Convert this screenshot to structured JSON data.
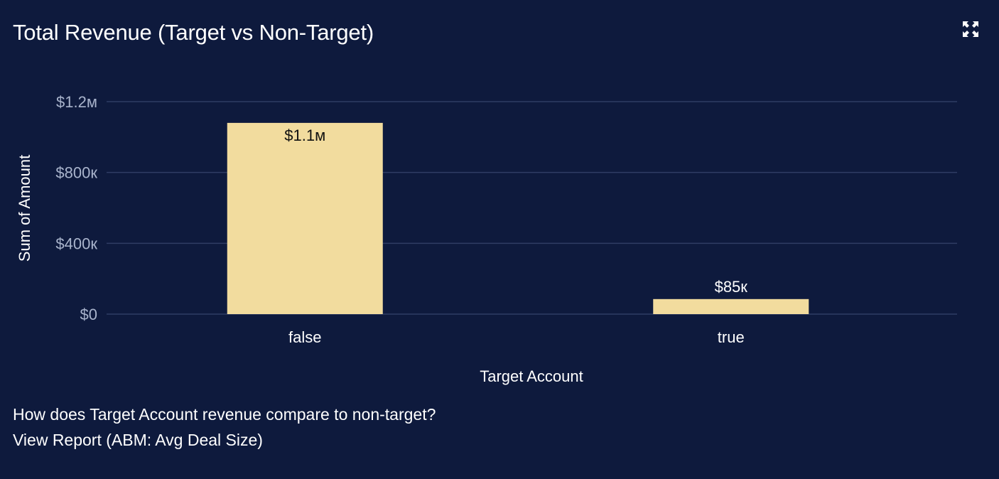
{
  "widget": {
    "title": "Total Revenue (Target vs Non-Target)",
    "question": "How does Target Account revenue compare to non-target?",
    "report_link": "View Report (ABM: Avg Deal Size)",
    "expand_icon": "expand-icon"
  },
  "colors": {
    "background": "#0e1a3d",
    "bar": "#f2dc9e",
    "grid": "#2f3d64",
    "tick_text": "#a9b4cc",
    "label_text": "#ffffff"
  },
  "chart_data": {
    "type": "bar",
    "categories": [
      "false",
      "true"
    ],
    "values": [
      1080000,
      85000
    ],
    "data_labels": [
      "$1.1м",
      "$85к"
    ],
    "xlabel": "Target Account",
    "ylabel": "Sum of Amount",
    "ylim": [
      0,
      1200000
    ],
    "yticks": [
      0,
      400000,
      800000,
      1200000
    ],
    "ytick_labels": [
      "$0",
      "$400к",
      "$800к",
      "$1.2м"
    ],
    "grid": true,
    "legend": "none"
  }
}
